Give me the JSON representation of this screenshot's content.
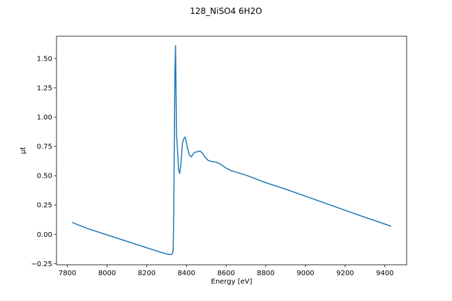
{
  "chart_data": {
    "type": "line",
    "title": "128_NiSO4 6H2O",
    "xlabel": "Energy [eV]",
    "ylabel": "μt",
    "xlim": [
      7745,
      9510
    ],
    "ylim": [
      -0.26,
      1.69
    ],
    "x_ticks": [
      7800,
      8000,
      8200,
      8400,
      8600,
      8800,
      9000,
      9200,
      9400
    ],
    "y_ticks": [
      -0.25,
      0.0,
      0.25,
      0.5,
      0.75,
      1.0,
      1.25,
      1.5
    ],
    "x_tick_labels": [
      "7800",
      "8000",
      "8200",
      "8400",
      "8600",
      "8800",
      "9000",
      "9200",
      "9400"
    ],
    "y_tick_labels": [
      "−0.25",
      "0.00",
      "0.25",
      "0.50",
      "0.75",
      "1.00",
      "1.25",
      "1.50"
    ],
    "grid": false,
    "series": [
      {
        "color": "#1f77b4",
        "x": [
          7825,
          7900,
          8000,
          8100,
          8200,
          8280,
          8310,
          8325,
          8330,
          8333,
          8336,
          8339,
          8342,
          8345,
          8347,
          8350,
          8355,
          8360,
          8366,
          8372,
          8380,
          8388,
          8393,
          8398,
          8405,
          8415,
          8425,
          8435,
          8445,
          8455,
          8468,
          8480,
          8495,
          8510,
          8530,
          8550,
          8570,
          8600,
          8630,
          8700,
          8800,
          8900,
          9000,
          9100,
          9200,
          9300,
          9430
        ],
        "y": [
          0.1,
          0.05,
          -0.005,
          -0.06,
          -0.115,
          -0.158,
          -0.172,
          -0.172,
          -0.16,
          -0.14,
          0.2,
          0.8,
          1.4,
          1.61,
          1.3,
          0.85,
          0.72,
          0.55,
          0.52,
          0.6,
          0.78,
          0.82,
          0.83,
          0.8,
          0.74,
          0.675,
          0.66,
          0.69,
          0.7,
          0.705,
          0.71,
          0.695,
          0.655,
          0.63,
          0.62,
          0.615,
          0.6,
          0.565,
          0.54,
          0.505,
          0.44,
          0.385,
          0.325,
          0.265,
          0.205,
          0.145,
          0.07
        ]
      }
    ]
  }
}
